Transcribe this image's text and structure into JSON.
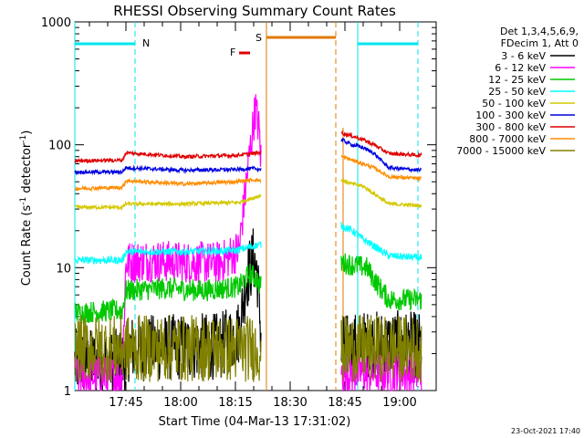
{
  "chart_data": {
    "type": "line",
    "title": "RHESSI Observing Summary Count Rates",
    "xlabel": "Start Time (04-Mar-13 17:31:02)",
    "ylabel_main": "Count Rate (s",
    "ylabel_sup1": "-1",
    "ylabel_mid": " detector",
    "ylabel_sup2": "-1",
    "ylabel_end": ")",
    "footer_date": "23-Oct-2021 17:40",
    "x_axis": {
      "start": "17:31:02",
      "end": "19:10:00",
      "range_min": [
        0,
        99
      ]
    },
    "x_ticks": [
      {
        "label": "17:45",
        "min": 14
      },
      {
        "label": "18:00",
        "min": 29
      },
      {
        "label": "18:15",
        "min": 44
      },
      {
        "label": "18:30",
        "min": 59
      },
      {
        "label": "18:45",
        "min": 74
      },
      {
        "label": "19:00",
        "min": 89
      }
    ],
    "y_scale": "log",
    "ylim": [
      1,
      1000
    ],
    "y_ticks": [
      {
        "label": "1",
        "value": 1
      },
      {
        "label": "10",
        "value": 10
      },
      {
        "label": "100",
        "value": 100
      },
      {
        "label": "1000",
        "value": 1000
      }
    ],
    "legend": {
      "header": [
        "Det 1,3,4,5,6,9,",
        "FDecim 1, Att 0"
      ],
      "placement": "right"
    },
    "flags": [
      {
        "label": "N",
        "color": "#00e5ee",
        "kind": "night"
      },
      {
        "label": "S",
        "color": "#e07a00",
        "kind": "saa"
      },
      {
        "label": "F",
        "color": "#e00000",
        "kind": "flare"
      }
    ],
    "series": [
      {
        "name": "3 - 6 keV",
        "color": "#000000",
        "points": [
          [
            0,
            1.7
          ],
          [
            14,
            1.7
          ],
          [
            14.5,
            2.2
          ],
          [
            40,
            2.3
          ],
          [
            45,
            3
          ],
          [
            47,
            8
          ],
          [
            49,
            12
          ],
          [
            50,
            9
          ],
          [
            51,
            2.8
          ]
        ],
        "points2": [
          [
            73,
            2.2
          ],
          [
            80,
            2.4
          ],
          [
            90,
            2.4
          ],
          [
            95,
            2.3
          ]
        ]
      },
      {
        "name": "6 - 12 keV",
        "color": "#ff00ff",
        "points": [
          [
            0,
            1.3
          ],
          [
            13,
            1.3
          ],
          [
            14,
            11
          ],
          [
            20,
            11.5
          ],
          [
            30,
            11
          ],
          [
            40,
            11
          ],
          [
            45,
            14
          ],
          [
            47,
            50
          ],
          [
            48.5,
            120
          ],
          [
            49.5,
            200
          ],
          [
            50.5,
            130
          ],
          [
            51,
            75
          ]
        ],
        "points2": [
          [
            73,
            1.4
          ],
          [
            95,
            1.4
          ]
        ]
      },
      {
        "name": "12 - 25 keV",
        "color": "#00c800",
        "points": [
          [
            0,
            4.3
          ],
          [
            13,
            4.5
          ],
          [
            14,
            6.5
          ],
          [
            25,
            6.8
          ],
          [
            35,
            6.5
          ],
          [
            45,
            7
          ],
          [
            48,
            9
          ],
          [
            50,
            8
          ],
          [
            51,
            7
          ]
        ],
        "points2": [
          [
            73,
            11
          ],
          [
            80,
            10
          ],
          [
            82,
            8
          ],
          [
            86,
            5.5
          ],
          [
            95,
            5.5
          ]
        ]
      },
      {
        "name": "25 - 50 keV",
        "color": "#00ffff",
        "points": [
          [
            0,
            11.5
          ],
          [
            13,
            11.5
          ],
          [
            14,
            13.5
          ],
          [
            30,
            13.5
          ],
          [
            44,
            13.8
          ],
          [
            49,
            15
          ],
          [
            51,
            15.5
          ]
        ],
        "points2": [
          [
            73,
            22
          ],
          [
            76,
            20
          ],
          [
            79,
            17
          ],
          [
            82,
            15
          ],
          [
            86,
            12.5
          ],
          [
            95,
            12
          ]
        ]
      },
      {
        "name": "50 - 100 keV",
        "color": "#d4c800",
        "points": [
          [
            0,
            31
          ],
          [
            13,
            31
          ],
          [
            14,
            33
          ],
          [
            30,
            33
          ],
          [
            45,
            34
          ],
          [
            49,
            37
          ],
          [
            51,
            39
          ]
        ],
        "points2": [
          [
            73,
            52
          ],
          [
            76,
            48
          ],
          [
            79,
            46
          ],
          [
            82,
            40
          ],
          [
            86,
            33
          ],
          [
            95,
            32
          ]
        ]
      },
      {
        "name": "100 - 300 keV",
        "color": "#0000e0",
        "points": [
          [
            0,
            60
          ],
          [
            13,
            60
          ],
          [
            14,
            65
          ],
          [
            30,
            62
          ],
          [
            44,
            63
          ],
          [
            49,
            64
          ],
          [
            51,
            63
          ]
        ],
        "points2": [
          [
            73,
            110
          ],
          [
            76,
            100
          ],
          [
            79,
            95
          ],
          [
            82,
            85
          ],
          [
            86,
            65
          ],
          [
            95,
            62
          ]
        ]
      },
      {
        "name": "300 - 800 keV",
        "color": "#e00000",
        "points": [
          [
            0,
            74
          ],
          [
            13,
            75
          ],
          [
            14,
            86
          ],
          [
            30,
            80
          ],
          [
            44,
            82
          ],
          [
            49,
            85
          ],
          [
            51,
            87
          ]
        ],
        "points2": [
          [
            73,
            125
          ],
          [
            76,
            118
          ],
          [
            79,
            110
          ],
          [
            82,
            100
          ],
          [
            86,
            85
          ],
          [
            95,
            82
          ]
        ]
      },
      {
        "name": "800 - 7000 keV",
        "color": "#ff8c00",
        "points": [
          [
            0,
            44
          ],
          [
            13,
            45
          ],
          [
            14,
            51
          ],
          [
            30,
            48
          ],
          [
            44,
            50
          ],
          [
            49,
            52
          ],
          [
            51,
            51
          ]
        ],
        "points2": [
          [
            73,
            80
          ],
          [
            76,
            75
          ],
          [
            79,
            70
          ],
          [
            82,
            65
          ],
          [
            86,
            55
          ],
          [
            95,
            53
          ]
        ]
      },
      {
        "name": "7000 - 15000 keV",
        "color": "#808000",
        "points": [
          [
            0,
            2.2
          ],
          [
            13,
            2.2
          ],
          [
            14,
            2.2
          ],
          [
            30,
            2.2
          ],
          [
            51,
            2.2
          ]
        ],
        "points2": [
          [
            73,
            2.2
          ],
          [
            95,
            2.2
          ]
        ]
      }
    ]
  }
}
